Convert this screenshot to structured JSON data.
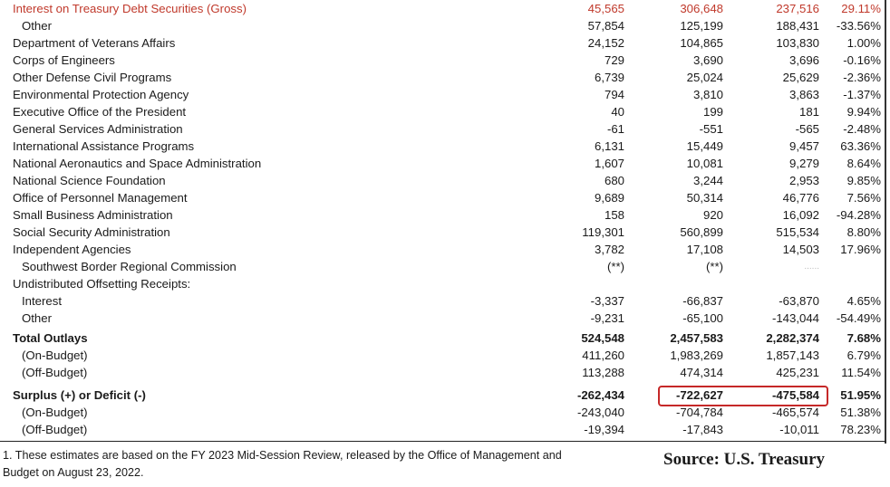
{
  "rows": [
    {
      "label": "Interest on Treasury Debt Securities (Gross)",
      "c1": "45,565",
      "c2": "306,648",
      "c3": "237,516",
      "c4": "29.11%",
      "style": "red"
    },
    {
      "label": "Other",
      "c1": "57,854",
      "c2": "125,199",
      "c3": "188,431",
      "c4": "-33.56%",
      "style": "indent"
    },
    {
      "label": "Department of Veterans Affairs",
      "c1": "24,152",
      "c2": "104,865",
      "c3": "103,830",
      "c4": "1.00%"
    },
    {
      "label": "Corps of Engineers",
      "c1": "729",
      "c2": "3,690",
      "c3": "3,696",
      "c4": "-0.16%"
    },
    {
      "label": "Other Defense Civil Programs",
      "c1": "6,739",
      "c2": "25,024",
      "c3": "25,629",
      "c4": "-2.36%"
    },
    {
      "label": "Environmental Protection Agency",
      "c1": "794",
      "c2": "3,810",
      "c3": "3,863",
      "c4": "-1.37%"
    },
    {
      "label": "Executive Office of the President",
      "c1": "40",
      "c2": "199",
      "c3": "181",
      "c4": "9.94%"
    },
    {
      "label": "General Services Administration",
      "c1": "-61",
      "c2": "-551",
      "c3": "-565",
      "c4": "-2.48%"
    },
    {
      "label": "International Assistance Programs",
      "c1": "6,131",
      "c2": "15,449",
      "c3": "9,457",
      "c4": "63.36%"
    },
    {
      "label": "National Aeronautics and Space Administration",
      "c1": "1,607",
      "c2": "10,081",
      "c3": "9,279",
      "c4": "8.64%"
    },
    {
      "label": "National Science Foundation",
      "c1": "680",
      "c2": "3,244",
      "c3": "2,953",
      "c4": "9.85%"
    },
    {
      "label": "Office of Personnel Management",
      "c1": "9,689",
      "c2": "50,314",
      "c3": "46,776",
      "c4": "7.56%"
    },
    {
      "label": "Small Business Administration",
      "c1": "158",
      "c2": "920",
      "c3": "16,092",
      "c4": "-94.28%"
    },
    {
      "label": "Social Security Administration",
      "c1": "119,301",
      "c2": "560,899",
      "c3": "515,534",
      "c4": "8.80%"
    },
    {
      "label": "Independent Agencies",
      "c1": "3,782",
      "c2": "17,108",
      "c3": "14,503",
      "c4": "17.96%"
    },
    {
      "label": "Southwest Border Regional Commission",
      "c1": "(**)",
      "c2": "(**)",
      "c3": "......",
      "c4": "",
      "style": "indent",
      "c3style": "faint"
    },
    {
      "label": "Undistributed Offsetting Receipts:",
      "c1": "",
      "c2": "",
      "c3": "",
      "c4": ""
    },
    {
      "label": "Interest",
      "c1": "-3,337",
      "c2": "-66,837",
      "c3": "-63,870",
      "c4": "4.65%",
      "style": "indent"
    },
    {
      "label": "Other",
      "c1": "-9,231",
      "c2": "-65,100",
      "c3": "-143,044",
      "c4": "-54.49%",
      "style": "indent"
    },
    {
      "gap": "gap-small"
    },
    {
      "label": "Total Outlays",
      "c1": "524,548",
      "c2": "2,457,583",
      "c3": "2,282,374",
      "c4": "7.68%",
      "style": "bold"
    },
    {
      "label": "(On-Budget)",
      "c1": "411,260",
      "c2": "1,983,269",
      "c3": "1,857,143",
      "c4": "6.79%",
      "style": "indent"
    },
    {
      "label": "(Off-Budget)",
      "c1": "113,288",
      "c2": "474,314",
      "c3": "425,231",
      "c4": "11.54%",
      "style": "indent"
    },
    {
      "gap": "gap"
    },
    {
      "label": "Surplus (+) or Deficit (-)",
      "c1": "-262,434",
      "c2": "-722,627",
      "c3": "-475,584",
      "c4": "51.95%",
      "style": "bold"
    },
    {
      "label": "(On-Budget)",
      "c1": "-243,040",
      "c2": "-704,784",
      "c3": "-465,574",
      "c4": "51.38%",
      "style": "indent"
    },
    {
      "label": "(Off-Budget)",
      "c1": "-19,394",
      "c2": "-17,843",
      "c3": "-10,011",
      "c4": "78.23%",
      "style": "indent"
    }
  ],
  "footnote": "1. These estimates are based on the FY 2023 Mid-Session Review, released by the Office of Management and Budget on August 23, 2022.",
  "source": "Source: U.S. Treasury",
  "colors": {
    "highlight_oval": "#c62828",
    "interest_row": "#c0392b"
  }
}
